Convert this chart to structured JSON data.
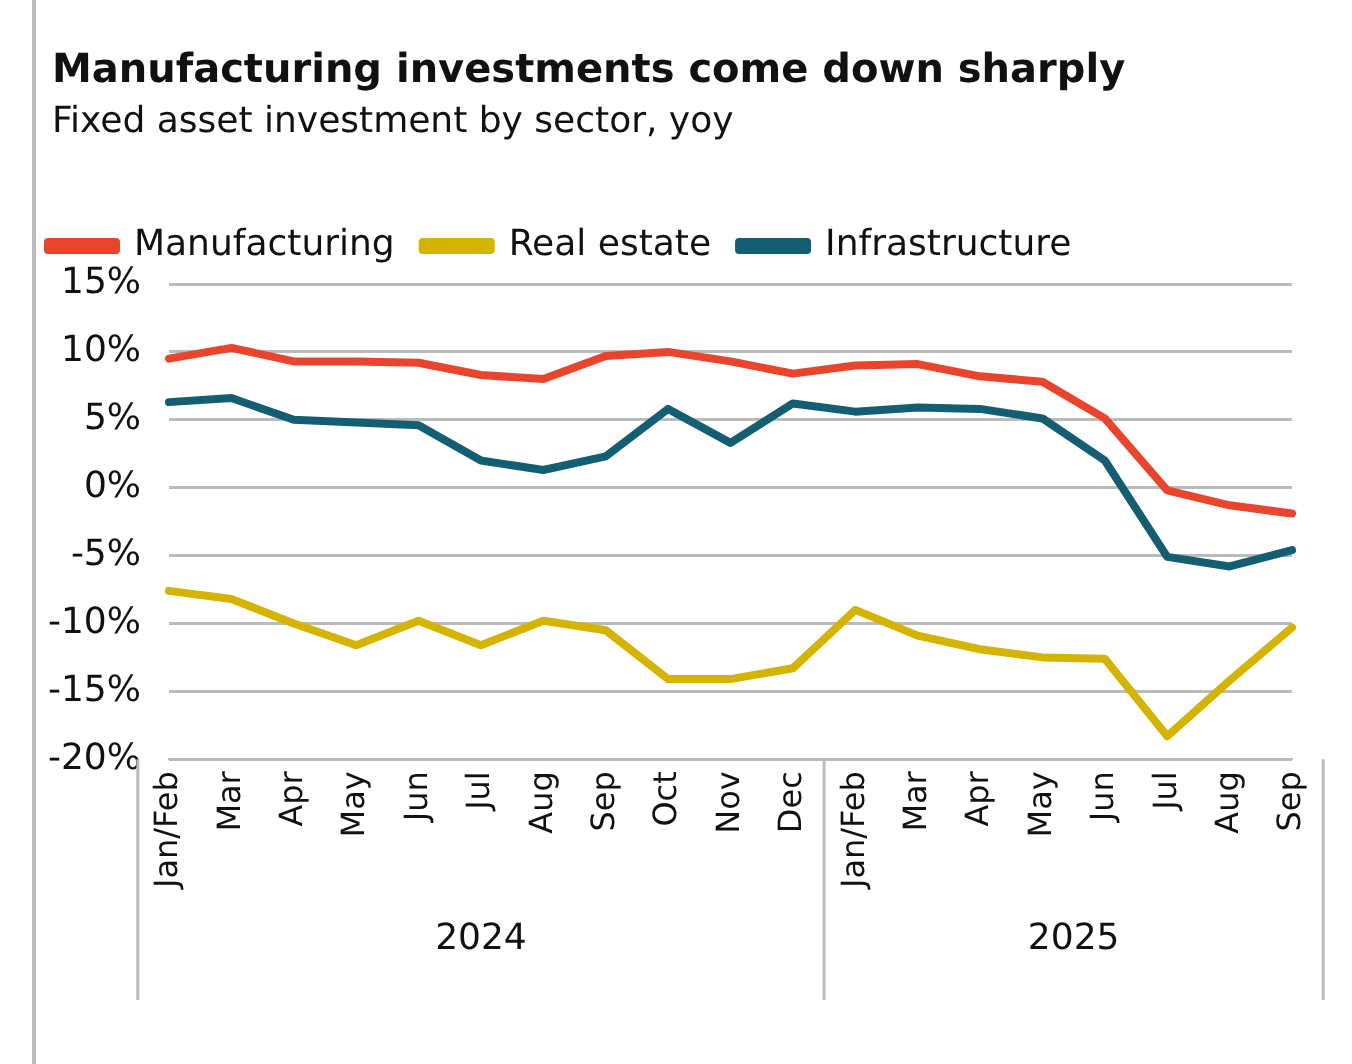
{
  "chart_data": {
    "type": "line",
    "title": "Manufacturing investments come down sharply",
    "subtitle": "Fixed asset investment by sector, yoy",
    "categories": [
      "Jan/Feb",
      "Mar",
      "Apr",
      "May",
      "Jun",
      "Jul",
      "Aug",
      "Sep",
      "Oct",
      "Nov",
      "Dec",
      "Jan/Feb",
      "Mar",
      "Apr",
      "May",
      "Jun",
      "Jul",
      "Aug",
      "Sep"
    ],
    "series": [
      {
        "name": "Manufacturing",
        "color": "#e8452c",
        "values": [
          9.5,
          10.3,
          9.3,
          9.3,
          9.2,
          8.3,
          8.0,
          9.7,
          10.0,
          9.3,
          8.4,
          9.0,
          9.1,
          8.2,
          7.8,
          5.1,
          -0.2,
          -1.3,
          -1.9
        ]
      },
      {
        "name": "Real estate",
        "color": "#d4b400",
        "values": [
          -7.6,
          -8.2,
          -10.0,
          -11.6,
          -9.8,
          -11.6,
          -9.8,
          -10.5,
          -14.1,
          -14.1,
          -13.3,
          -9.0,
          -10.9,
          -11.9,
          -12.5,
          -12.6,
          -18.3,
          -14.2,
          -10.3
        ]
      },
      {
        "name": "Infrastructure",
        "color": "#135e72",
        "values": [
          6.3,
          6.6,
          5.0,
          4.8,
          4.6,
          2.0,
          1.3,
          2.3,
          5.8,
          3.3,
          6.2,
          5.6,
          5.9,
          5.8,
          5.1,
          2.0,
          -5.1,
          -5.8,
          -4.6
        ]
      }
    ],
    "annotations": [
      "2024",
      "2025"
    ],
    "ylim": [
      -20,
      15
    ],
    "yticks": [
      {
        "value": -20,
        "label": "-20%"
      },
      {
        "value": -15,
        "label": "-15%"
      },
      {
        "value": -10,
        "label": "-10%"
      },
      {
        "value": -5,
        "label": "-5%"
      },
      {
        "value": 0,
        "label": "0%"
      },
      {
        "value": 5,
        "label": "5%"
      },
      {
        "value": 10,
        "label": "10%"
      },
      {
        "value": 15,
        "label": "15%"
      }
    ],
    "grid": "y",
    "legend": "top",
    "marker": "none",
    "line_style": "solid"
  }
}
